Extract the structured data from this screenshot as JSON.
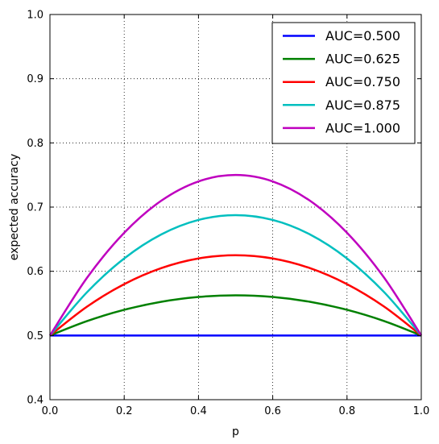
{
  "chart_data": {
    "type": "line",
    "title": "",
    "xlabel": "p",
    "ylabel": "expected accuracy",
    "xlim": [
      0.0,
      1.0
    ],
    "ylim": [
      0.4,
      1.0
    ],
    "xticks": [
      "0.0",
      "0.2",
      "0.4",
      "0.6",
      "0.8",
      "1.0"
    ],
    "yticks": [
      "0.4",
      "0.5",
      "0.6",
      "0.7",
      "0.8",
      "0.9",
      "1.0"
    ],
    "grid": true,
    "legend_position": "top-right",
    "x": [
      0.0,
      0.1,
      0.2,
      0.3,
      0.4,
      0.5,
      0.6,
      0.7,
      0.8,
      0.9,
      1.0
    ],
    "series": [
      {
        "name": "AUC=0.500",
        "color": "#0000ff",
        "values": [
          0.5,
          0.5,
          0.5,
          0.5,
          0.5,
          0.5,
          0.5,
          0.5,
          0.5,
          0.5,
          0.5
        ]
      },
      {
        "name": "AUC=0.625",
        "color": "#008000",
        "values": [
          0.5,
          0.5225,
          0.54,
          0.5525,
          0.56,
          0.5625,
          0.56,
          0.5525,
          0.54,
          0.5225,
          0.5
        ]
      },
      {
        "name": "AUC=0.750",
        "color": "#ff0000",
        "values": [
          0.5,
          0.545,
          0.58,
          0.605,
          0.62,
          0.625,
          0.62,
          0.605,
          0.58,
          0.545,
          0.5
        ]
      },
      {
        "name": "AUC=0.875",
        "color": "#00bfbf",
        "values": [
          0.5,
          0.5675,
          0.62,
          0.6575,
          0.68,
          0.6875,
          0.68,
          0.6575,
          0.62,
          0.5675,
          0.5
        ]
      },
      {
        "name": "AUC=1.000",
        "color": "#bf00bf",
        "values": [
          0.5,
          0.59,
          0.66,
          0.71,
          0.74,
          0.75,
          0.74,
          0.71,
          0.66,
          0.59,
          0.5
        ]
      }
    ]
  }
}
